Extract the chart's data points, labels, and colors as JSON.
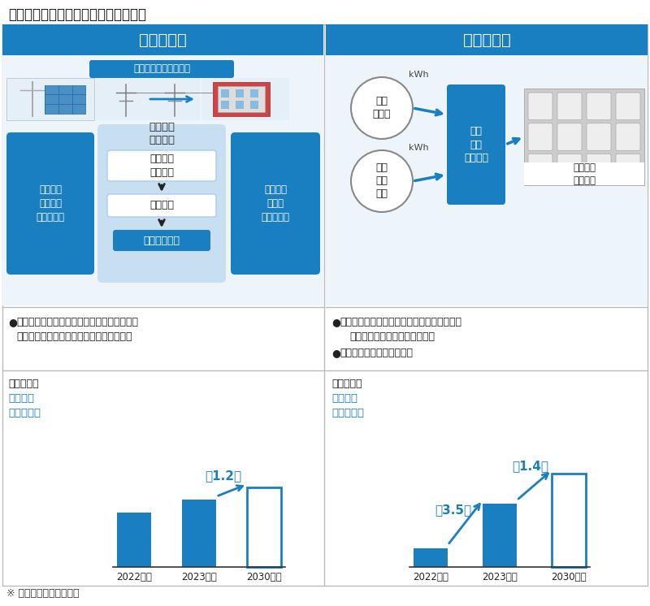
{
  "title": "カーボンニュートラル関連商談の概要",
  "col1_header": "再エネ活用",
  "col2_header": "系統蓄電池",
  "blue_main": "#1A7FC0",
  "blue_header": "#1A7FC0",
  "bg_color": "#FFFFFF",
  "panel_bg": "#EDF4FA",
  "text_dark": "#222222",
  "text_blue": "#1A7FC0",
  "col1_top_box": "電力会社の送配電設備",
  "col1_left_box": "需要家の\n保有する\n再エネ設備",
  "col1_center_label": "自己託送\nシステム",
  "col1_right_box": "他の場所\nにある\n需要家施設",
  "col1_inner1": "需要予測\n発電予測",
  "col1_inner2": "計画申請",
  "col1_bottom_box": "電力広域機関",
  "col2_circle1": "電力\n卵市場",
  "col2_circle2": "需給\n調整\n市場",
  "col2_center_box": "最適\n運用\nシステム",
  "col2_right_label": "大型蓄電\nシステム",
  "kwh": "kWh",
  "col1_bullet1": "カーボンニュートラル達成のため、自家消費",
  "col1_bullet1b": "を中心に需要家の太陽光発電導入が拡大中",
  "col2_bullet1": "再エネ発電大量導入により、受給バランスを",
  "col2_bullet1b": "維持する系統蓄電池の導入開始",
  "col2_bullet2": "補助金により急激に伸長中",
  "market_label": "市場見通し",
  "market_sub1": "継続的に",
  "market_sub2": "市場拡大中",
  "bar_labels": [
    "2022年度",
    "2023年度",
    "2030年度"
  ],
  "col1_bars": [
    0.58,
    0.72,
    0.85
  ],
  "col2_bars": [
    0.2,
    0.68,
    1.0
  ],
  "col1_arrow_label": "約1.2倍",
  "col2_arrow_label1": "約3.5倍",
  "col2_arrow_label2": "約1.4倍",
  "footnote": "※ 市場見通しは当社予測"
}
